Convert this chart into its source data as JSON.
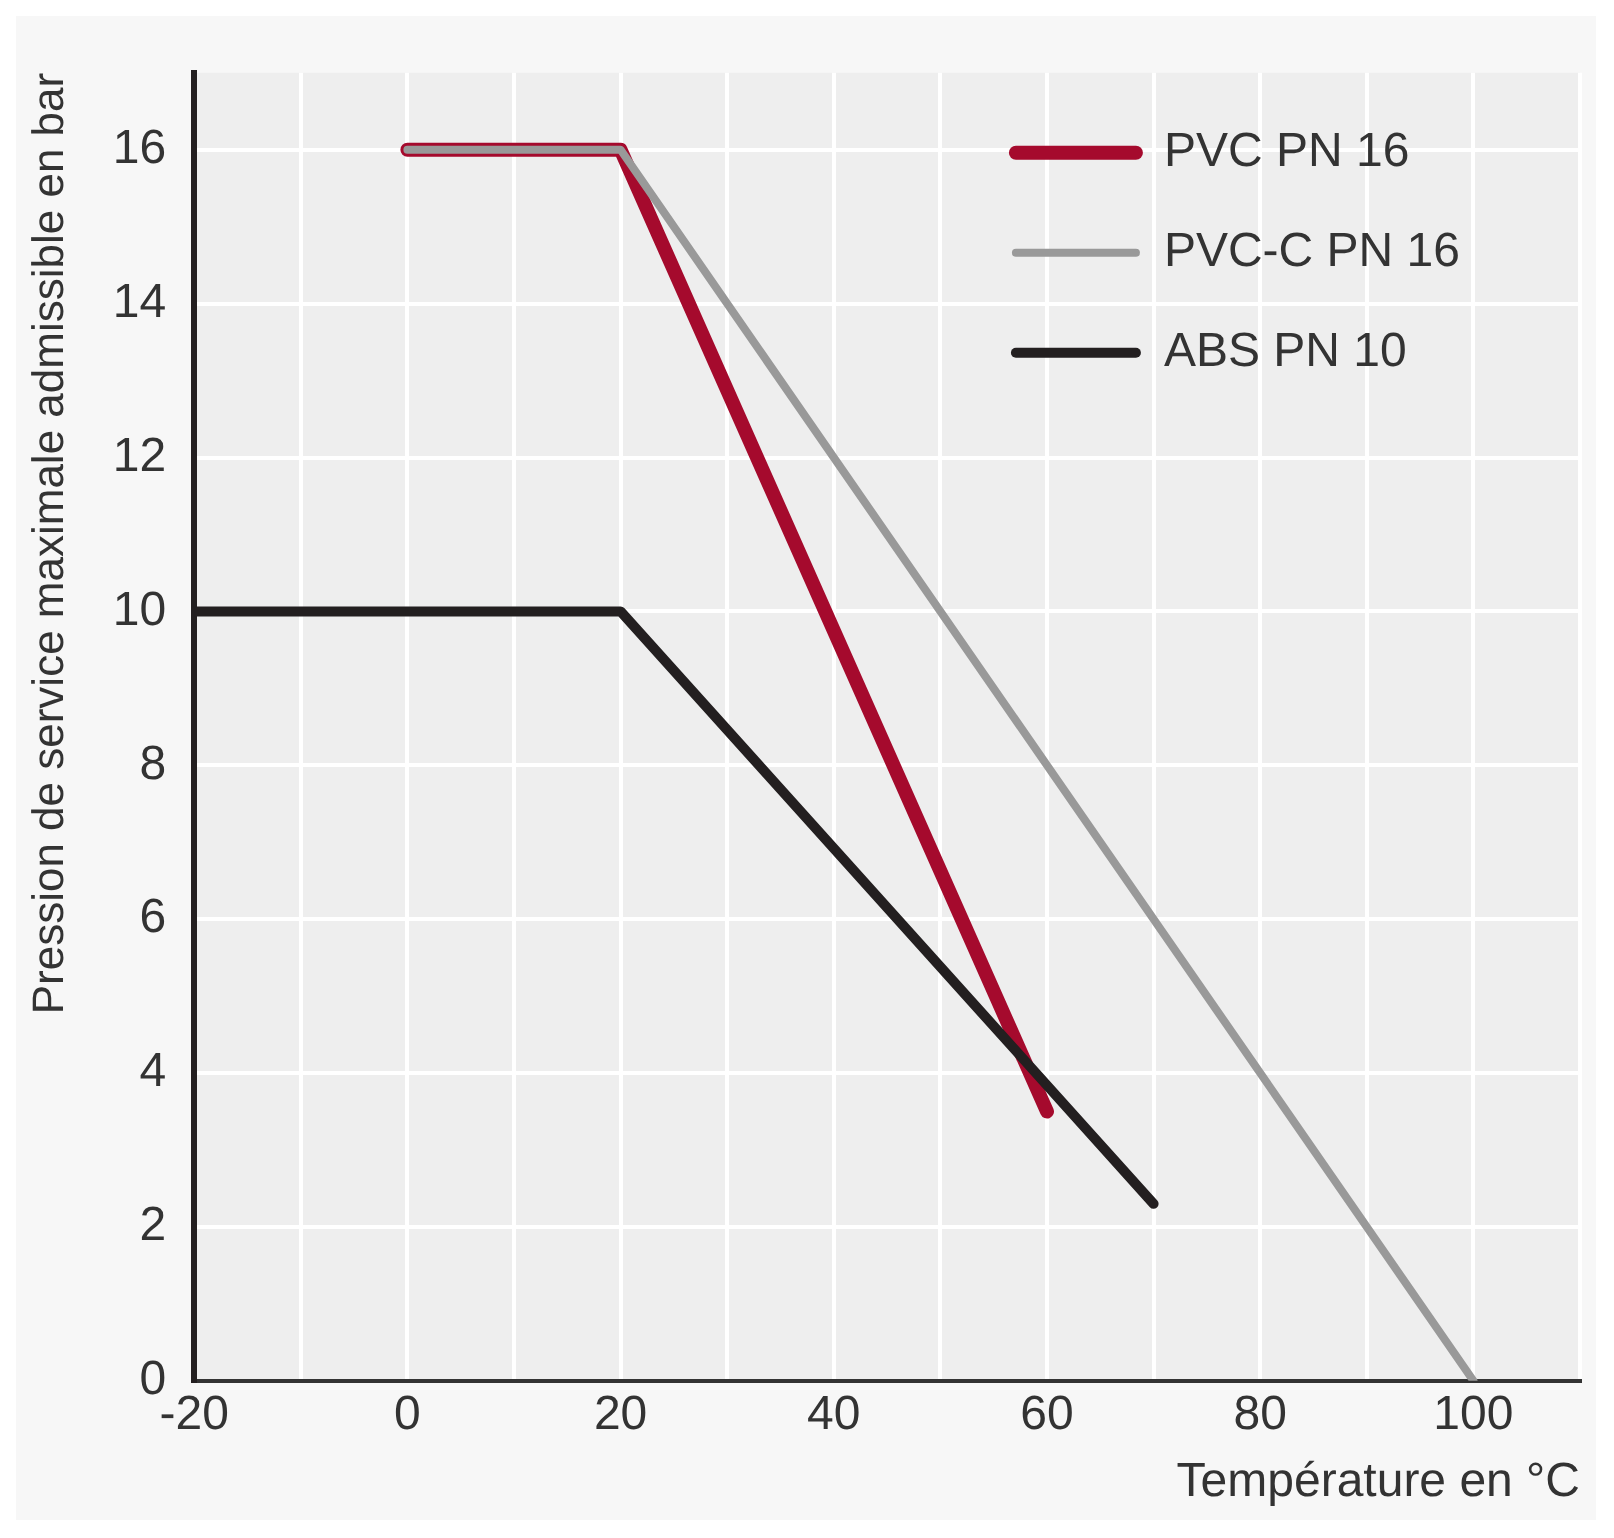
{
  "chart_data": {
    "type": "line",
    "xlabel": "Température en °C",
    "ylabel": "Pression de service maximale admissible en bar",
    "series": [
      {
        "name": "PVC PN 16",
        "color": "#a50a2d",
        "x": [
          0,
          20,
          60
        ],
        "values": [
          16,
          16,
          3.5
        ]
      },
      {
        "name": "PVC-C PN 16",
        "color": "#999999",
        "x": [
          0,
          20,
          100
        ],
        "values": [
          16,
          16,
          0
        ]
      },
      {
        "name": "ABS PN 10",
        "color": "#231f20",
        "x": [
          -20,
          20,
          70
        ],
        "values": [
          10,
          10,
          2.3
        ]
      }
    ],
    "xlim": [
      -20,
      110
    ],
    "xticks": [
      -20,
      {
        "value": -10,
        "label": null
      },
      0,
      {
        "value": 10,
        "label": null
      },
      20,
      {
        "value": 30,
        "label": null
      },
      40,
      {
        "value": 50,
        "label": null
      },
      60,
      {
        "value": 70,
        "label": null
      },
      80,
      {
        "value": 90,
        "label": null
      },
      100,
      {
        "value": 110,
        "label": null
      }
    ],
    "ylim": [
      0,
      17
    ],
    "yticks": [
      0,
      2,
      4,
      6,
      8,
      10,
      12,
      14,
      16
    ],
    "grid": true,
    "legend": "top right",
    "marker": "none",
    "line_style": "solid"
  }
}
